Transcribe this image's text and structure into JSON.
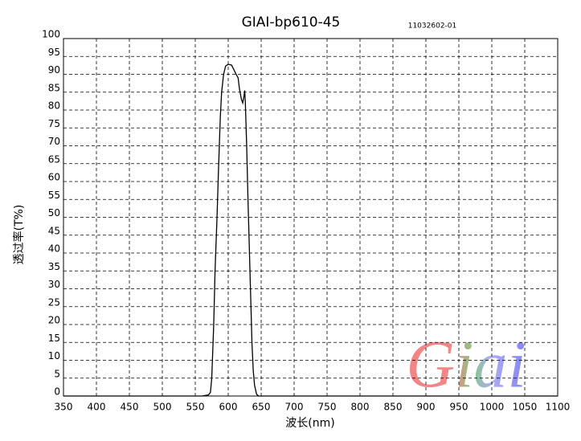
{
  "chart_data": {
    "type": "line",
    "title": "GIAI-bp610-45",
    "subtitle": "11032602-01",
    "x_label": "波长(nm)",
    "y_label": "透过率(T%)",
    "watermark": "Giai",
    "x": [
      350,
      560,
      570,
      573,
      575,
      578,
      580,
      583,
      585,
      588,
      590,
      593,
      596,
      600,
      605,
      608,
      612,
      615,
      617,
      620,
      622,
      624,
      625,
      626,
      628,
      630,
      633,
      636,
      638,
      640,
      643,
      646,
      1100
    ],
    "values": [
      0,
      0,
      0.3,
      1,
      5,
      20,
      35,
      50,
      62,
      78,
      85,
      90,
      92.3,
      92.8,
      92.6,
      91.5,
      90,
      89,
      86,
      83,
      82,
      84,
      85.5,
      82,
      70,
      55,
      35,
      15,
      7,
      3,
      0.5,
      0,
      0
    ],
    "color": "#000000",
    "xlim": [
      350,
      1100
    ],
    "ylim": [
      0,
      100
    ],
    "xticks": [
      350,
      400,
      450,
      500,
      550,
      600,
      650,
      700,
      750,
      800,
      850,
      900,
      950,
      1000,
      1050,
      1100
    ],
    "yticks": [
      0,
      5,
      10,
      15,
      20,
      25,
      30,
      35,
      40,
      45,
      50,
      55,
      60,
      65,
      70,
      75,
      80,
      85,
      90,
      95,
      100
    ],
    "grid": true
  }
}
